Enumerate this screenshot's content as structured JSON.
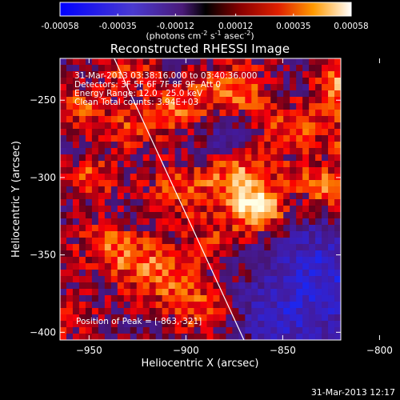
{
  "colorbar": {
    "min": -0.00058,
    "max": 0.00058,
    "ticks": [
      "-0.00058",
      "-0.00035",
      "-0.00012",
      "0.00012",
      "0.00035",
      "0.00058"
    ],
    "unit_main": "(photons cm",
    "unit_exp1": "-2",
    "unit_mid1": " s",
    "unit_exp2": "-1",
    "unit_mid2": " asec",
    "unit_exp3": "-2",
    "unit_end": ")"
  },
  "chart_data": {
    "type": "heatmap",
    "title": "Reconstructed RHESSI Image",
    "xlabel": "Heliocentric X (arcsec)",
    "ylabel": "Heliocentric Y (arcsec)",
    "xlim": [
      -965,
      -820
    ],
    "ylim": [
      -405,
      -223
    ],
    "xticks": [
      -950,
      -900,
      -850,
      -800
    ],
    "yticks": [
      -250,
      -300,
      -350,
      -400
    ],
    "grid": false,
    "colormap": "hot-with-blue-purple-negatives",
    "peak": [
      -863,
      -321
    ],
    "limb_line": [
      [
        -937,
        -223
      ],
      [
        -870,
        -405
      ]
    ],
    "annotations": {
      "time_range": "31-Mar-2013 03:38:16.000  to  03:40:36.000",
      "detectors": "Detectors: 3F 5F 6F 7F 8F 9F, Att 0",
      "energy": "Energy Range: 12.0 - 25.0 keV",
      "clean": "Clean     Total counts: 3.94E+03",
      "peak_label": "Position of Peak = [-863,-321]"
    }
  },
  "footer": {
    "timestamp": "31-Mar-2013 12:17"
  }
}
